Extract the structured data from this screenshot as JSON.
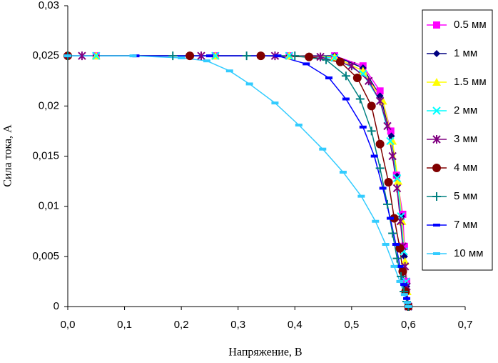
{
  "chart_data": {
    "type": "line",
    "xlabel": "Напряжение, В",
    "ylabel": "Сила тока, А",
    "xlim": [
      0,
      0.7
    ],
    "ylim": [
      0,
      0.03
    ],
    "xticks": [
      {
        "value": 0,
        "label": "0,0"
      },
      {
        "value": 0.1,
        "label": "0,1"
      },
      {
        "value": 0.2,
        "label": "0,2"
      },
      {
        "value": 0.3,
        "label": "0,3"
      },
      {
        "value": 0.4,
        "label": "0,4"
      },
      {
        "value": 0.5,
        "label": "0,5"
      },
      {
        "value": 0.6,
        "label": "0,6"
      },
      {
        "value": 0.7,
        "label": "0,7"
      }
    ],
    "yticks": [
      0,
      {
        "value": 0.005,
        "label": "0,005"
      },
      {
        "value": 0.01,
        "label": "0,01"
      },
      {
        "value": 0.015,
        "label": "0,015"
      },
      {
        "value": 0.02,
        "label": "0,02"
      },
      {
        "value": 0.025,
        "label": "0,025"
      },
      {
        "value": 0.03,
        "label": "0,03"
      }
    ],
    "legend": "upper right",
    "series": [
      {
        "name": "0.5 мм",
        "color": "#ff00ff",
        "marker": "square",
        "x": [
          0.05,
          0.26,
          0.39,
          0.47,
          0.52,
          0.55,
          0.569,
          0.579,
          0.59,
          0.593,
          0.597,
          0.6
        ],
        "values": [
          0.025,
          0.025,
          0.025,
          0.025,
          0.024,
          0.0215,
          0.0175,
          0.0131,
          0.0092,
          0.006,
          0.0025,
          0
        ]
      },
      {
        "name": "1 мм",
        "color": "#000080",
        "marker": "diamond",
        "x": [
          0.05,
          0.26,
          0.39,
          0.47,
          0.52,
          0.55,
          0.57,
          0.58,
          0.588,
          0.593,
          0.597,
          0.6
        ],
        "values": [
          0.025,
          0.025,
          0.025,
          0.025,
          0.0238,
          0.021,
          0.017,
          0.013,
          0.009,
          0.005,
          0.002,
          0
        ]
      },
      {
        "name": "1.5 мм",
        "color": "#ffff00",
        "marker": "triangle",
        "x": [
          0.05,
          0.26,
          0.39,
          0.47,
          0.52,
          0.555,
          0.572,
          0.582,
          0.589,
          0.594,
          0.598,
          0.6
        ],
        "values": [
          0.025,
          0.025,
          0.025,
          0.0249,
          0.0235,
          0.0205,
          0.0165,
          0.0125,
          0.0085,
          0.0045,
          0.0015,
          0
        ]
      },
      {
        "name": "2 мм",
        "color": "#00ffff",
        "marker": "x",
        "x": [
          0.05,
          0.26,
          0.39,
          0.47,
          0.52,
          0.55,
          0.568,
          0.58,
          0.587,
          0.592,
          0.596,
          0.6
        ],
        "values": [
          0.025,
          0.025,
          0.025,
          0.0248,
          0.0232,
          0.0205,
          0.0165,
          0.0128,
          0.009,
          0.0055,
          0.0025,
          0
        ]
      },
      {
        "name": "3 мм",
        "color": "#800080",
        "marker": "star",
        "x": [
          0.025,
          0.235,
          0.365,
          0.445,
          0.5,
          0.53,
          0.55,
          0.563,
          0.572,
          0.58,
          0.586,
          0.59,
          0.594,
          0.597,
          0.6
        ],
        "values": [
          0.025,
          0.025,
          0.025,
          0.0249,
          0.024,
          0.0225,
          0.0205,
          0.018,
          0.015,
          0.0118,
          0.0085,
          0.006,
          0.004,
          0.002,
          0
        ]
      },
      {
        "name": "4 мм",
        "color": "#800000",
        "marker": "circle",
        "x": [
          0.0,
          0.215,
          0.34,
          0.425,
          0.48,
          0.51,
          0.535,
          0.55,
          0.565,
          0.575,
          0.585,
          0.59,
          0.595,
          0.6
        ],
        "values": [
          0.025,
          0.025,
          0.025,
          0.0249,
          0.0244,
          0.0228,
          0.02,
          0.0162,
          0.0124,
          0.0088,
          0.0058,
          0.0035,
          0.0015,
          0
        ]
      },
      {
        "name": "5 мм",
        "color": "#008080",
        "marker": "plus",
        "x": [
          0.0,
          0.185,
          0.315,
          0.4,
          0.455,
          0.49,
          0.515,
          0.535,
          0.55,
          0.563,
          0.572,
          0.58,
          0.587,
          0.592,
          0.597,
          0.6
        ],
        "values": [
          0.025,
          0.025,
          0.025,
          0.025,
          0.0246,
          0.023,
          0.0207,
          0.0175,
          0.0138,
          0.0102,
          0.0073,
          0.0048,
          0.003,
          0.0015,
          0.0005,
          0
        ]
      },
      {
        "name": "7 мм",
        "color": "#0000ff",
        "marker": "dash",
        "x": [
          0.0,
          0.12,
          0.25,
          0.37,
          0.42,
          0.46,
          0.49,
          0.52,
          0.54,
          0.555,
          0.568,
          0.578,
          0.585,
          0.592,
          0.597,
          0.6
        ],
        "values": [
          0.025,
          0.025,
          0.025,
          0.025,
          0.0242,
          0.0228,
          0.0207,
          0.0179,
          0.015,
          0.0118,
          0.0088,
          0.0062,
          0.004,
          0.0022,
          0.0008,
          0
        ]
      },
      {
        "name": "10 мм",
        "color": "#33ccff",
        "marker": "dash",
        "x": [
          0.0,
          0.115,
          0.2,
          0.245,
          0.285,
          0.32,
          0.365,
          0.407,
          0.449,
          0.485,
          0.517,
          0.542,
          0.56,
          0.575,
          0.585,
          0.593,
          0.598,
          0.6
        ],
        "values": [
          0.025,
          0.025,
          0.0248,
          0.0245,
          0.0235,
          0.0222,
          0.0203,
          0.0181,
          0.0157,
          0.0134,
          0.011,
          0.0085,
          0.0062,
          0.004,
          0.0025,
          0.0012,
          0.0004,
          0
        ]
      }
    ]
  }
}
